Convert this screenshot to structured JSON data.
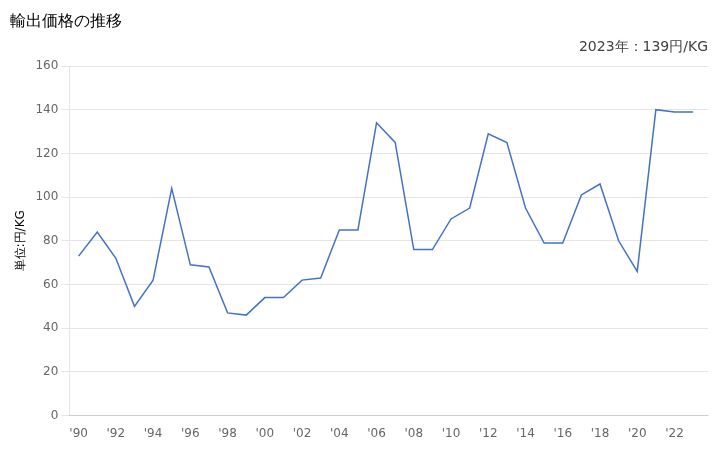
{
  "chart_data": {
    "type": "line",
    "title": "輸出価格の推移",
    "ylabel": "単位:円/KG",
    "annotations": [
      "2023年：139円/KG"
    ],
    "x": [
      1990,
      1991,
      1992,
      1993,
      1994,
      1995,
      1996,
      1997,
      1998,
      1999,
      2000,
      2001,
      2002,
      2003,
      2004,
      2005,
      2006,
      2007,
      2008,
      2009,
      2010,
      2011,
      2012,
      2013,
      2014,
      2015,
      2016,
      2017,
      2018,
      2019,
      2020,
      2021,
      2022,
      2023
    ],
    "values": [
      73,
      84,
      72,
      50,
      62,
      104,
      69,
      68,
      47,
      46,
      54,
      54,
      62,
      63,
      85,
      85,
      134,
      125,
      76,
      76,
      90,
      95,
      129,
      125,
      95,
      79,
      79,
      101,
      106,
      80,
      66,
      140,
      139,
      139
    ],
    "color": "#4472C4",
    "xlim": [
      1989.5,
      2023.8
    ],
    "xticks": [
      {
        "value": 1990,
        "label": "'90"
      },
      {
        "value": 1992,
        "label": "'92"
      },
      {
        "value": 1994,
        "label": "'94"
      },
      {
        "value": 1996,
        "label": "'96"
      },
      {
        "value": 1998,
        "label": "'98"
      },
      {
        "value": 2000,
        "label": "'00"
      },
      {
        "value": 2002,
        "label": "'02"
      },
      {
        "value": 2004,
        "label": "'04"
      },
      {
        "value": 2006,
        "label": "'06"
      },
      {
        "value": 2008,
        "label": "'08"
      },
      {
        "value": 2010,
        "label": "'10"
      },
      {
        "value": 2012,
        "label": "'12"
      },
      {
        "value": 2014,
        "label": "'14"
      },
      {
        "value": 2016,
        "label": "'16"
      },
      {
        "value": 2018,
        "label": "'18"
      },
      {
        "value": 2020,
        "label": "'20"
      },
      {
        "value": 2022,
        "label": "'22"
      }
    ],
    "ylim": [
      0,
      160
    ],
    "yticks": [
      0,
      20,
      40,
      60,
      80,
      100,
      120,
      140,
      160
    ],
    "grid": "y"
  }
}
